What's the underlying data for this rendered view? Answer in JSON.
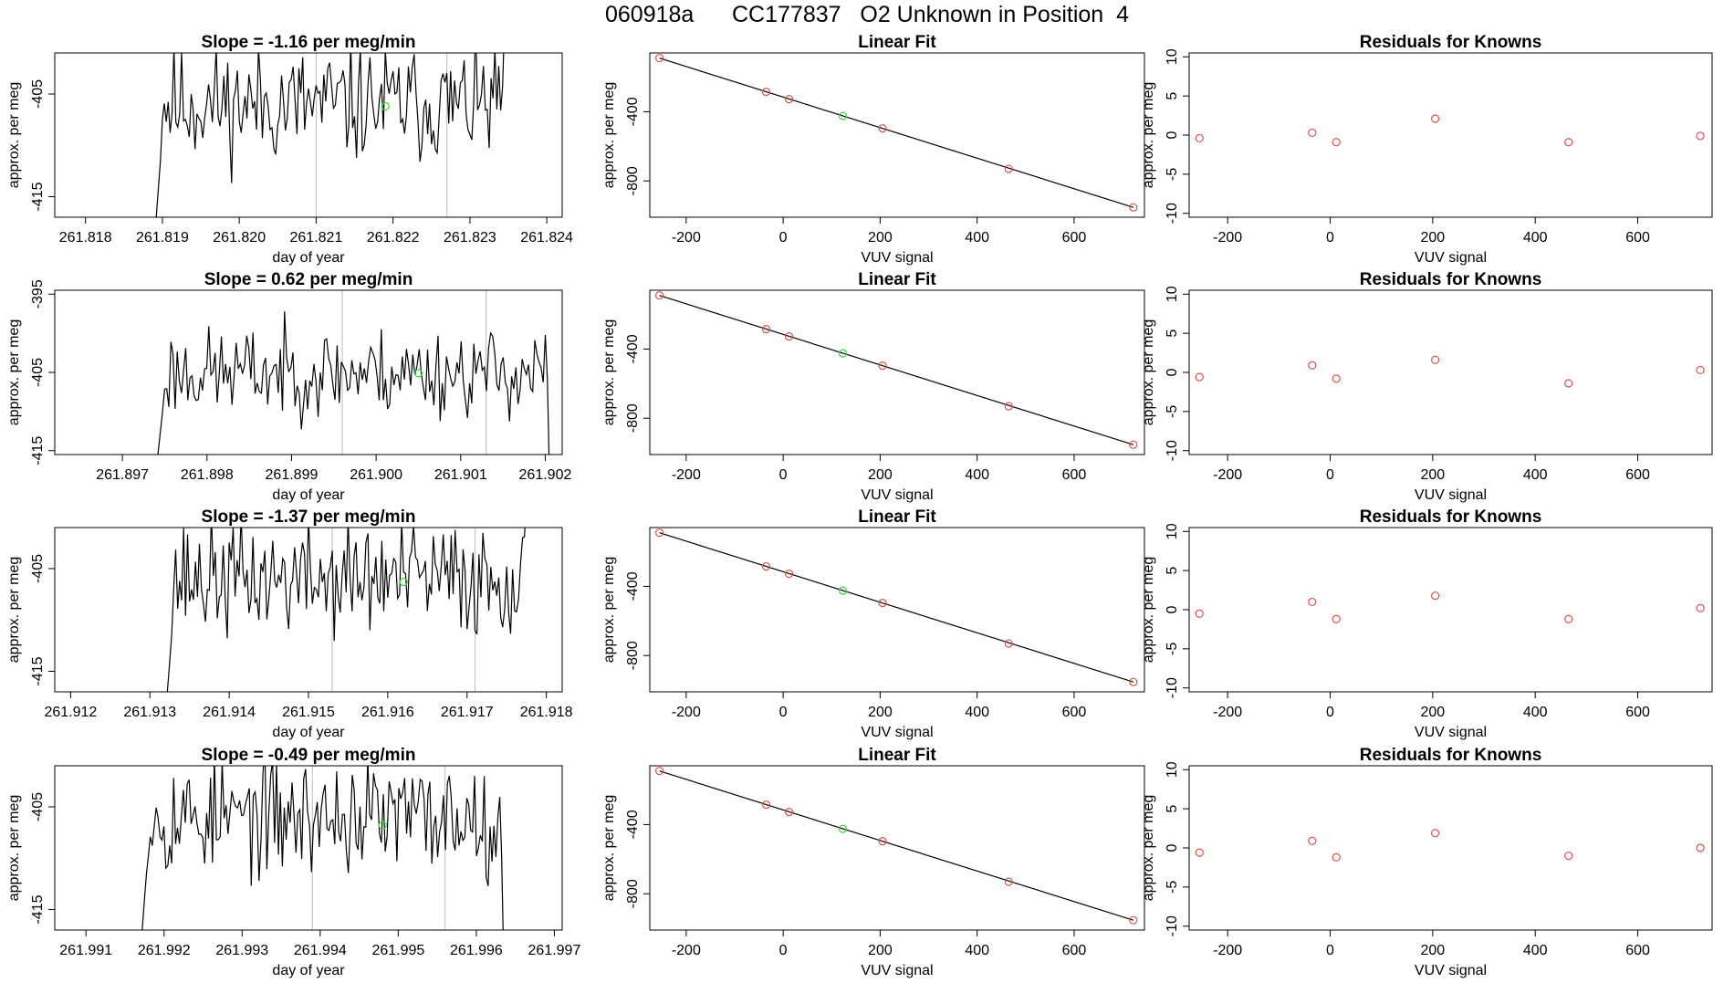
{
  "header": {
    "title": "060918a      CC177837   O2 Unknown in Position  4"
  },
  "colors": {
    "known": "#d9534f",
    "unknown": "#33dd33",
    "line": "#000000",
    "vline": "#bbbbbb"
  },
  "chart_data": [
    {
      "type": "line",
      "panel": "timeseries",
      "row": 1,
      "title": "Slope =  -1.16  per meg/min",
      "xlabel": "day of year",
      "ylabel": "approx. per meg",
      "xlim": [
        261.8176,
        261.8242
      ],
      "ylim": [
        -417,
        -401
      ],
      "xticks": [
        261.818,
        261.819,
        261.82,
        261.821,
        261.822,
        261.823,
        261.824
      ],
      "xtick_labels": [
        "261.818",
        "261.819",
        "261.820",
        "261.821",
        "261.822",
        "261.823",
        "261.824"
      ],
      "yticks": [
        -405,
        -415
      ],
      "ytick_labels": [
        "-405",
        "-415"
      ],
      "x_start": 261.8189,
      "x_end": 261.8235,
      "n_points": 185,
      "mean": -406,
      "noise": 3.5,
      "seed": 11,
      "vlines": [
        261.821,
        261.8227
      ],
      "unknown_point": {
        "x": 261.8219,
        "y": -406.2
      }
    },
    {
      "type": "scatter",
      "panel": "linear_fit",
      "row": 1,
      "title": "Linear Fit",
      "xlabel": "VUV signal",
      "ylabel": "approx. per meg",
      "xlim": [
        -275,
        745
      ],
      "ylim": [
        -1010,
        -60
      ],
      "xticks": [
        -200,
        0,
        200,
        400,
        600
      ],
      "xtick_labels": [
        "-200",
        "0",
        "200",
        "400",
        "600"
      ],
      "yticks": [
        -400,
        -800
      ],
      "ytick_labels": [
        "-400",
        "-800"
      ],
      "known_x": [
        -255,
        -35,
        12,
        205,
        465,
        722
      ],
      "known_y": [
        -90,
        -285,
        -327,
        -496,
        -730,
        -953
      ],
      "unknown": {
        "x": 123,
        "y": -425
      },
      "fit_line": {
        "x": [
          -255,
          722
        ],
        "y": [
          -90,
          -953
        ]
      }
    },
    {
      "type": "scatter",
      "panel": "residuals",
      "row": 1,
      "title": "Residuals for Knowns",
      "xlabel": "VUV signal",
      "ylabel": "approx. per meg",
      "xlim": [
        -275,
        745
      ],
      "ylim": [
        -10.5,
        10.5
      ],
      "xticks": [
        -200,
        0,
        200,
        400,
        600
      ],
      "xtick_labels": [
        "-200",
        "0",
        "200",
        "400",
        "600"
      ],
      "yticks": [
        10,
        5,
        0,
        -5,
        -10
      ],
      "ytick_labels": [
        "10",
        "5",
        "0",
        "-5",
        "-10"
      ],
      "x": [
        -255,
        -35,
        12,
        205,
        465,
        722
      ],
      "y": [
        -0.4,
        0.3,
        -0.9,
        2.1,
        -0.9,
        -0.1
      ]
    },
    {
      "type": "line",
      "panel": "timeseries",
      "row": 2,
      "title": "Slope =  0.62  per meg/min",
      "xlabel": "day of year",
      "ylabel": "approx. per meg",
      "xlim": [
        261.8962,
        261.9022
      ],
      "ylim": [
        -415.5,
        -394.5
      ],
      "xticks": [
        261.897,
        261.898,
        261.899,
        261.9,
        261.901,
        261.902
      ],
      "xtick_labels": [
        "261.897",
        "261.898",
        "261.899",
        "261.900",
        "261.901",
        "261.902"
      ],
      "yticks": [
        -395,
        -405,
        -415
      ],
      "ytick_labels": [
        "-395",
        "-405",
        "-415"
      ],
      "x_start": 261.8974,
      "x_end": 261.9021,
      "n_points": 190,
      "mean": -405,
      "noise": 3.5,
      "seed": 23,
      "vlines": [
        261.8996,
        261.9013
      ],
      "unknown_point": {
        "x": 261.9005,
        "y": -405.1
      }
    },
    {
      "type": "scatter",
      "panel": "linear_fit",
      "row": 2,
      "title": "Linear Fit",
      "xlabel": "VUV signal",
      "ylabel": "approx. per meg",
      "xlim": [
        -275,
        745
      ],
      "ylim": [
        -1010,
        -60
      ],
      "xticks": [
        -200,
        0,
        200,
        400,
        600
      ],
      "xtick_labels": [
        "-200",
        "0",
        "200",
        "400",
        "600"
      ],
      "yticks": [
        -400,
        -800
      ],
      "ytick_labels": [
        "-400",
        "-800"
      ],
      "known_x": [
        -255,
        -35,
        12,
        205,
        465,
        722
      ],
      "known_y": [
        -90,
        -285,
        -327,
        -496,
        -730,
        -953
      ],
      "unknown": {
        "x": 123,
        "y": -425
      },
      "fit_line": {
        "x": [
          -255,
          722
        ],
        "y": [
          -90,
          -953
        ]
      }
    },
    {
      "type": "scatter",
      "panel": "residuals",
      "row": 2,
      "title": "Residuals for Knowns",
      "xlabel": "VUV signal",
      "ylabel": "approx. per meg",
      "xlim": [
        -275,
        745
      ],
      "ylim": [
        -10.5,
        10.5
      ],
      "xticks": [
        -200,
        0,
        200,
        400,
        600
      ],
      "xtick_labels": [
        "-200",
        "0",
        "200",
        "400",
        "600"
      ],
      "yticks": [
        10,
        5,
        0,
        -5,
        -10
      ],
      "ytick_labels": [
        "10",
        "5",
        "0",
        "-5",
        "-10"
      ],
      "x": [
        -255,
        -35,
        12,
        205,
        465,
        722
      ],
      "y": [
        -0.6,
        0.9,
        -0.8,
        1.6,
        -1.4,
        0.3
      ]
    },
    {
      "type": "line",
      "panel": "timeseries",
      "row": 3,
      "title": "Slope =  -1.37  per meg/min",
      "xlabel": "day of year",
      "ylabel": "approx. per meg",
      "xlim": [
        261.9118,
        261.9182
      ],
      "ylim": [
        -417,
        -401
      ],
      "xticks": [
        261.912,
        261.913,
        261.914,
        261.915,
        261.916,
        261.917,
        261.918
      ],
      "xtick_labels": [
        "261.912",
        "261.913",
        "261.914",
        "261.915",
        "261.916",
        "261.917",
        "261.918"
      ],
      "yticks": [
        -405,
        -415
      ],
      "ytick_labels": [
        "-405",
        "-415"
      ],
      "x_start": 261.9132,
      "x_end": 261.9178,
      "n_points": 185,
      "mean": -406,
      "noise": 3.5,
      "seed": 37,
      "vlines": [
        261.9153,
        261.9171
      ],
      "unknown_point": {
        "x": 261.9162,
        "y": -406.3
      }
    },
    {
      "type": "scatter",
      "panel": "linear_fit",
      "row": 3,
      "title": "Linear Fit",
      "xlabel": "VUV signal",
      "ylabel": "approx. per meg",
      "xlim": [
        -275,
        745
      ],
      "ylim": [
        -1010,
        -60
      ],
      "xticks": [
        -200,
        0,
        200,
        400,
        600
      ],
      "xtick_labels": [
        "-200",
        "0",
        "200",
        "400",
        "600"
      ],
      "yticks": [
        -400,
        -800
      ],
      "ytick_labels": [
        "-400",
        "-800"
      ],
      "known_x": [
        -255,
        -35,
        12,
        205,
        465,
        722
      ],
      "known_y": [
        -90,
        -285,
        -327,
        -496,
        -730,
        -953
      ],
      "unknown": {
        "x": 123,
        "y": -425
      },
      "fit_line": {
        "x": [
          -255,
          722
        ],
        "y": [
          -90,
          -953
        ]
      }
    },
    {
      "type": "scatter",
      "panel": "residuals",
      "row": 3,
      "title": "Residuals for Knowns",
      "xlabel": "VUV signal",
      "ylabel": "approx. per meg",
      "xlim": [
        -275,
        745
      ],
      "ylim": [
        -10.5,
        10.5
      ],
      "xticks": [
        -200,
        0,
        200,
        400,
        600
      ],
      "xtick_labels": [
        "-200",
        "0",
        "200",
        "400",
        "600"
      ],
      "yticks": [
        10,
        5,
        0,
        -5,
        -10
      ],
      "ytick_labels": [
        "10",
        "5",
        "0",
        "-5",
        "-10"
      ],
      "x": [
        -255,
        -35,
        12,
        205,
        465,
        722
      ],
      "y": [
        -0.5,
        1.0,
        -1.2,
        1.8,
        -1.2,
        0.2
      ]
    },
    {
      "type": "line",
      "panel": "timeseries",
      "row": 4,
      "title": "Slope =  -0.49  per meg/min",
      "xlabel": "day of year",
      "ylabel": "approx. per meg",
      "xlim": [
        261.9906,
        261.9971
      ],
      "ylim": [
        -417,
        -401
      ],
      "xticks": [
        261.991,
        261.992,
        261.993,
        261.994,
        261.995,
        261.996,
        261.997
      ],
      "xtick_labels": [
        "261.991",
        "261.992",
        "261.993",
        "261.994",
        "261.995",
        "261.996",
        "261.997"
      ],
      "yticks": [
        -405,
        -415
      ],
      "ytick_labels": [
        "-405",
        "-415"
      ],
      "x_start": 261.9917,
      "x_end": 261.9964,
      "n_points": 190,
      "mean": -406,
      "noise": 3.5,
      "seed": 53,
      "vlines": [
        261.9939,
        261.9956
      ],
      "unknown_point": {
        "x": 261.9948,
        "y": -406.8
      }
    },
    {
      "type": "scatter",
      "panel": "linear_fit",
      "row": 4,
      "title": "Linear Fit",
      "xlabel": "VUV signal",
      "ylabel": "approx. per meg",
      "xlim": [
        -275,
        745
      ],
      "ylim": [
        -1010,
        -60
      ],
      "xticks": [
        -200,
        0,
        200,
        400,
        600
      ],
      "xtick_labels": [
        "-200",
        "0",
        "200",
        "400",
        "600"
      ],
      "yticks": [
        -400,
        -800
      ],
      "ytick_labels": [
        "-400",
        "-800"
      ],
      "known_x": [
        -255,
        -35,
        12,
        205,
        465,
        722
      ],
      "known_y": [
        -90,
        -285,
        -327,
        -496,
        -730,
        -953
      ],
      "unknown": {
        "x": 123,
        "y": -425
      },
      "fit_line": {
        "x": [
          -255,
          722
        ],
        "y": [
          -90,
          -953
        ]
      }
    },
    {
      "type": "scatter",
      "panel": "residuals",
      "row": 4,
      "title": "Residuals for Knowns",
      "xlabel": "VUV signal",
      "ylabel": "approx. per meg",
      "xlim": [
        -275,
        745
      ],
      "ylim": [
        -10.5,
        10.5
      ],
      "xticks": [
        -200,
        0,
        200,
        400,
        600
      ],
      "xtick_labels": [
        "-200",
        "0",
        "200",
        "400",
        "600"
      ],
      "yticks": [
        10,
        5,
        0,
        -5,
        -10
      ],
      "ytick_labels": [
        "10",
        "5",
        "0",
        "-5",
        "-10"
      ],
      "x": [
        -255,
        -35,
        12,
        205,
        465,
        722
      ],
      "y": [
        -0.6,
        0.9,
        -1.2,
        1.9,
        -1.0,
        0.0
      ]
    }
  ]
}
